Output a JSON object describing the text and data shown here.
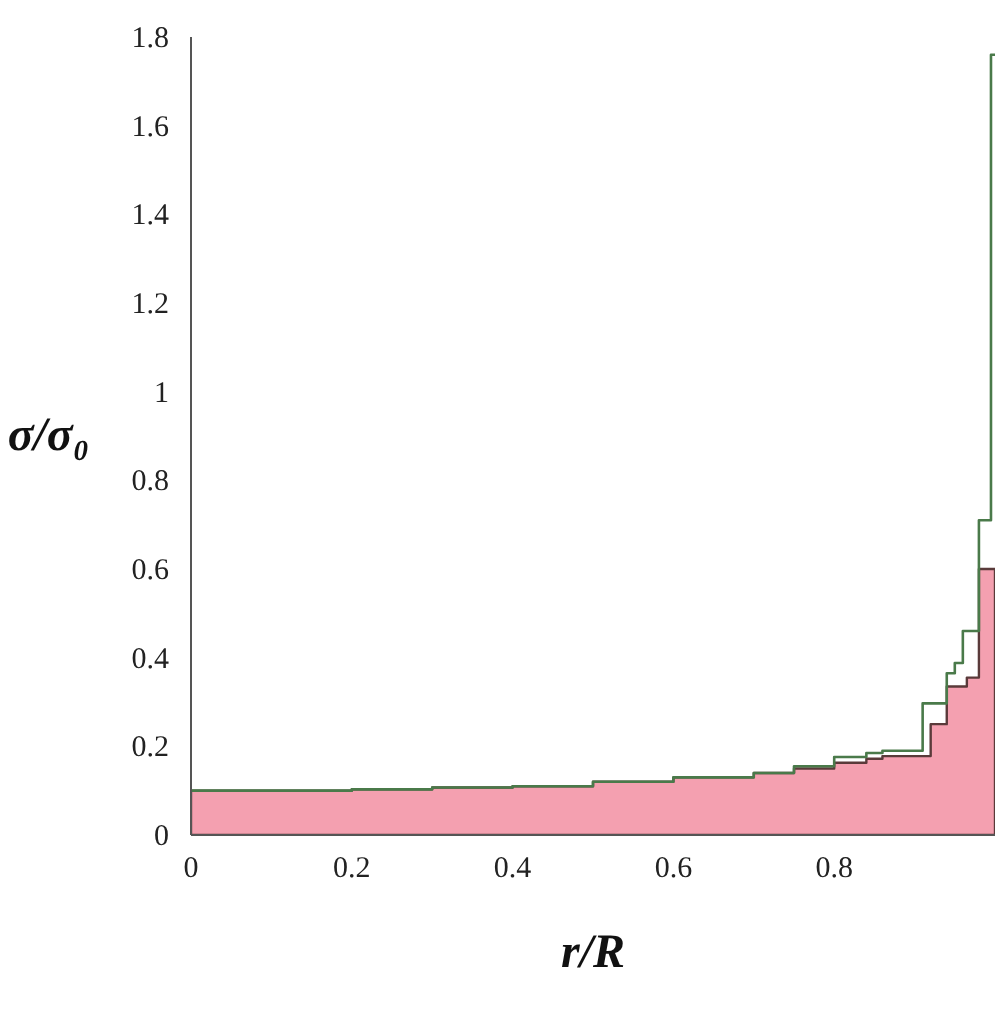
{
  "chart_data": {
    "type": "step",
    "xlabel": "r/R",
    "ylabel": "σ/σ₀",
    "xlim": [
      0,
      1
    ],
    "ylim": [
      0,
      1.8
    ],
    "xticks": [
      0,
      0.2,
      0.4,
      0.6,
      0.8
    ],
    "yticks": [
      0,
      0.2,
      0.4,
      0.6,
      0.8,
      1,
      1.2,
      1.4,
      1.6,
      1.8
    ],
    "grid": false,
    "series": [
      {
        "type": "area",
        "color": "#f4a0b0",
        "x": [
          0,
          0.2,
          0.3,
          0.4,
          0.5,
          0.6,
          0.7,
          0.75,
          0.8,
          0.84,
          0.86,
          0.92,
          0.94,
          0.965,
          0.98,
          1
        ],
        "values": [
          0.1,
          0.103,
          0.107,
          0.11,
          0.12,
          0.13,
          0.14,
          0.15,
          0.163,
          0.172,
          0.178,
          0.25,
          0.335,
          0.355,
          0.6,
          0.6
        ]
      },
      {
        "color": "#4a7a4a",
        "x": [
          0,
          0.2,
          0.3,
          0.4,
          0.5,
          0.6,
          0.7,
          0.75,
          0.8,
          0.84,
          0.86,
          0.91,
          0.94,
          0.95,
          0.96,
          0.98,
          0.995,
          1
        ],
        "values": [
          0.1,
          0.103,
          0.107,
          0.11,
          0.12,
          0.13,
          0.14,
          0.155,
          0.176,
          0.185,
          0.19,
          0.297,
          0.365,
          0.388,
          0.46,
          0.71,
          1.76,
          1.76
        ]
      }
    ]
  }
}
